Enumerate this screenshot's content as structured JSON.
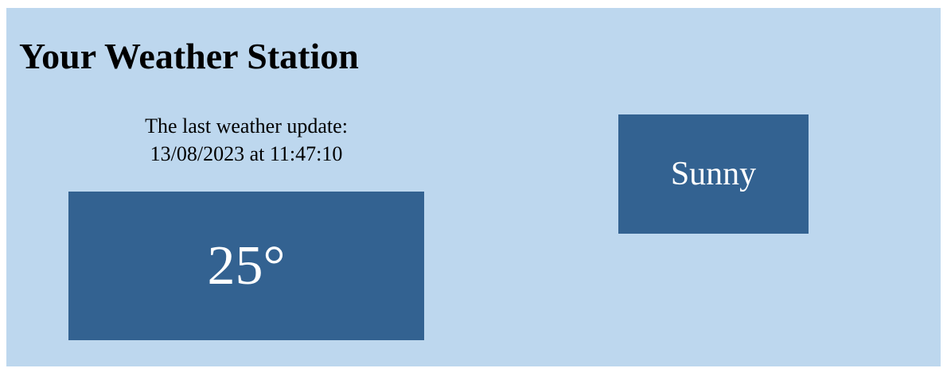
{
  "app": {
    "title": "Your Weather Station"
  },
  "update": {
    "line1": "The last weather update:",
    "line2": "13/08/2023 at 11:47:10"
  },
  "weather": {
    "temperature": "25°",
    "condition": "Sunny"
  },
  "colors": {
    "panel_background": "#bdd7ee",
    "tile_background": "#336291",
    "tile_text": "#ffffff"
  }
}
